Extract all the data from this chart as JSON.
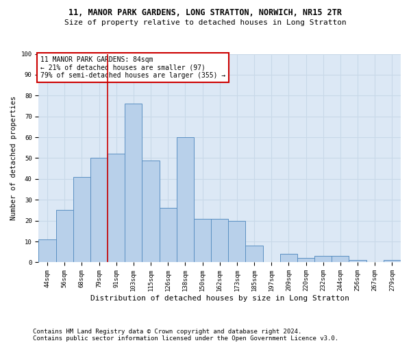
{
  "title": "11, MANOR PARK GARDENS, LONG STRATTON, NORWICH, NR15 2TR",
  "subtitle": "Size of property relative to detached houses in Long Stratton",
  "xlabel": "Distribution of detached houses by size in Long Stratton",
  "ylabel": "Number of detached properties",
  "footer_line1": "Contains HM Land Registry data © Crown copyright and database right 2024.",
  "footer_line2": "Contains public sector information licensed under the Open Government Licence v3.0.",
  "bar_labels": [
    "44sqm",
    "56sqm",
    "68sqm",
    "79sqm",
    "91sqm",
    "103sqm",
    "115sqm",
    "126sqm",
    "138sqm",
    "150sqm",
    "162sqm",
    "173sqm",
    "185sqm",
    "197sqm",
    "209sqm",
    "220sqm",
    "232sqm",
    "244sqm",
    "256sqm",
    "267sqm",
    "279sqm"
  ],
  "bar_values": [
    11,
    25,
    41,
    50,
    52,
    76,
    49,
    26,
    60,
    21,
    21,
    20,
    8,
    0,
    4,
    2,
    3,
    3,
    1,
    0,
    1
  ],
  "bar_color": "#b8d0ea",
  "bar_edge_color": "#5a8fc2",
  "vline_x": 3.5,
  "vline_color": "#cc0000",
  "annotation_text": "11 MANOR PARK GARDENS: 84sqm\n← 21% of detached houses are smaller (97)\n79% of semi-detached houses are larger (355) →",
  "annotation_box_color": "#cc0000",
  "ylim": [
    0,
    100
  ],
  "yticks": [
    0,
    10,
    20,
    30,
    40,
    50,
    60,
    70,
    80,
    90,
    100
  ],
  "grid_color": "#c8d8e8",
  "background_color": "#dce8f5",
  "title_fontsize": 8.5,
  "subtitle_fontsize": 8,
  "xlabel_fontsize": 8,
  "ylabel_fontsize": 7.5,
  "tick_fontsize": 6.5,
  "annotation_fontsize": 7,
  "footer_fontsize": 6.5
}
